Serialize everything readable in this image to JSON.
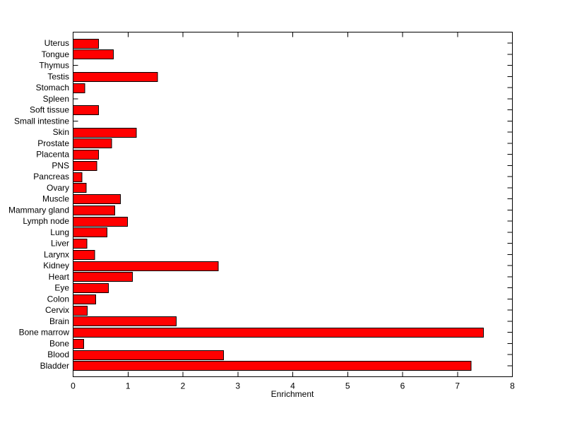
{
  "chart_data": {
    "type": "bar",
    "orientation": "horizontal",
    "title": "",
    "xlabel": "Enrichment",
    "ylabel": "",
    "xlim": [
      0,
      8
    ],
    "xticks": [
      "0",
      "1",
      "2",
      "3",
      "4",
      "5",
      "6",
      "7",
      "8"
    ],
    "grid": false,
    "legend": null,
    "category_order": "top-to-bottom",
    "bar_color": "#ff0000",
    "bar_edge_color": "#000000",
    "axis_color": "#000000",
    "background_color": "#ffffff",
    "categories": [
      "Uterus",
      "Tongue",
      "Thymus",
      "Testis",
      "Stomach",
      "Spleen",
      "Soft tissue",
      "Small intestine",
      "Skin",
      "Prostate",
      "Placenta",
      "PNS",
      "Pancreas",
      "Ovary",
      "Muscle",
      "Mammary gland",
      "Lymph node",
      "Lung",
      "Liver",
      "Larynx",
      "Kidney",
      "Heart",
      "Eye",
      "Colon",
      "Cervix",
      "Brain",
      "Bone marrow",
      "Bone",
      "Blood",
      "Bladder"
    ],
    "values": [
      0.46,
      0.73,
      0,
      1.54,
      0.21,
      0,
      0.46,
      0,
      1.15,
      0.7,
      0.46,
      0.43,
      0.16,
      0.24,
      0.86,
      0.76,
      0.99,
      0.62,
      0.25,
      0.39,
      2.64,
      1.08,
      0.64,
      0.41,
      0.26,
      1.88,
      7.47,
      0.19,
      2.74,
      7.25
    ]
  }
}
